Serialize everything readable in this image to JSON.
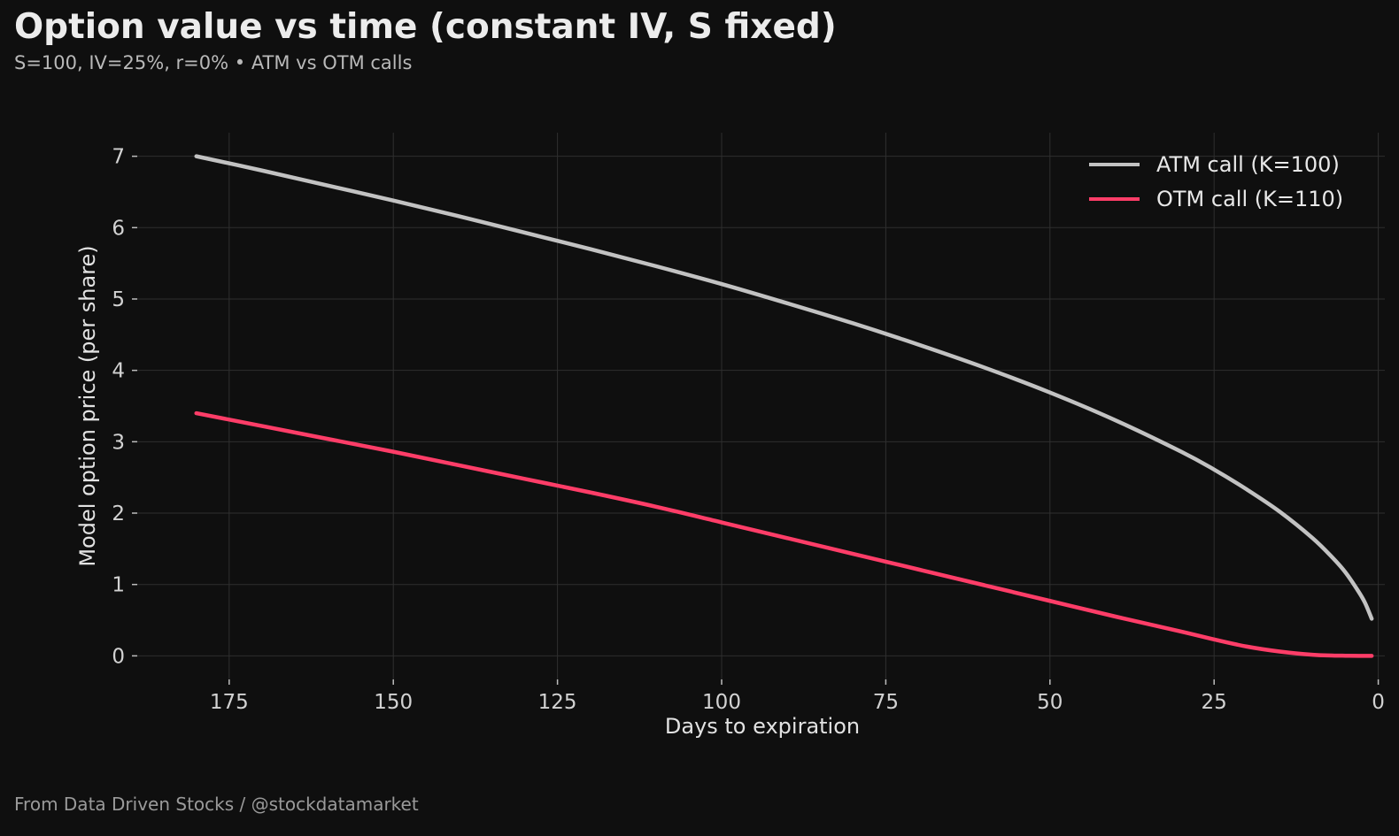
{
  "header": {
    "title": "Option value vs time (constant IV, S fixed)",
    "subtitle": "S=100, IV=25%, r=0% • ATM vs OTM calls"
  },
  "footer": {
    "credit": "From Data Driven Stocks / @stockdatamarket"
  },
  "chart_data": {
    "type": "line",
    "title": "Option value vs time (constant IV, S fixed)",
    "subtitle": "S=100, IV=25%, r=0% • ATM vs OTM calls",
    "xlabel": "Days to expiration",
    "ylabel": "Model option price (per share)",
    "xlim": [
      189,
      -1
    ],
    "ylim": [
      -0.33,
      7.33
    ],
    "x_reversed": true,
    "xticks": [
      175,
      150,
      125,
      100,
      75,
      50,
      25,
      0
    ],
    "yticks": [
      0,
      1,
      2,
      3,
      4,
      5,
      6,
      7
    ],
    "grid": true,
    "legend_position": "top-right",
    "series": [
      {
        "name": "ATM call (K=100)",
        "color": "#c2c2c2",
        "x": [
          180,
          170,
          160,
          150,
          140,
          130,
          120,
          110,
          100,
          90,
          80,
          70,
          60,
          50,
          40,
          30,
          25,
          20,
          15,
          10,
          7,
          5,
          3,
          2,
          1
        ],
        "y": [
          7.0,
          6.8,
          6.59,
          6.38,
          6.16,
          5.93,
          5.7,
          5.46,
          5.21,
          4.94,
          4.66,
          4.36,
          4.04,
          3.69,
          3.3,
          2.86,
          2.61,
          2.33,
          2.02,
          1.65,
          1.38,
          1.17,
          0.9,
          0.74,
          0.52
        ]
      },
      {
        "name": "OTM call (K=110)",
        "color": "#ff3d68",
        "x": [
          180,
          170,
          160,
          150,
          140,
          130,
          120,
          110,
          100,
          90,
          80,
          70,
          60,
          50,
          40,
          30,
          25,
          20,
          15,
          10,
          7,
          5,
          3,
          1
        ],
        "y": [
          3.4,
          3.22,
          3.04,
          2.86,
          2.67,
          2.48,
          2.29,
          2.09,
          1.87,
          1.65,
          1.43,
          1.21,
          0.99,
          0.77,
          0.55,
          0.34,
          0.23,
          0.13,
          0.06,
          0.015,
          0.005,
          0.002,
          0.0,
          0.0
        ]
      }
    ]
  }
}
